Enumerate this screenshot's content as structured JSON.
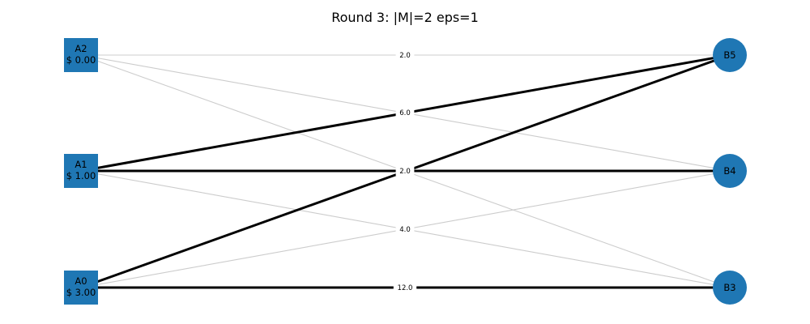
{
  "title": "Round 3: |M|=2 eps=1",
  "colors": {
    "node_fill": "#1f77b4",
    "edge_light": "#cccccc",
    "edge_bold": "#000000",
    "background": "#ffffff"
  },
  "left_nodes": [
    {
      "id": "A2",
      "name": "A2",
      "price": "$ 0.00"
    },
    {
      "id": "A1",
      "name": "A1",
      "price": "$ 1.00"
    },
    {
      "id": "A0",
      "name": "A0",
      "price": "$ 3.00"
    }
  ],
  "right_nodes": [
    {
      "id": "B5",
      "name": "B5"
    },
    {
      "id": "B4",
      "name": "B4"
    },
    {
      "id": "B3",
      "name": "B3"
    }
  ],
  "edges": [
    {
      "from": "A2",
      "to": "B5",
      "bold": false
    },
    {
      "from": "A2",
      "to": "B4",
      "bold": false
    },
    {
      "from": "A2",
      "to": "B3",
      "bold": false
    },
    {
      "from": "A1",
      "to": "B5",
      "bold": true
    },
    {
      "from": "A1",
      "to": "B4",
      "bold": true
    },
    {
      "from": "A1",
      "to": "B3",
      "bold": false
    },
    {
      "from": "A0",
      "to": "B5",
      "bold": true
    },
    {
      "from": "A0",
      "to": "B4",
      "bold": false
    },
    {
      "from": "A0",
      "to": "B3",
      "bold": true
    }
  ],
  "edge_labels": [
    "2.0",
    "6.0",
    "2.0",
    "4.0",
    "12.0"
  ]
}
